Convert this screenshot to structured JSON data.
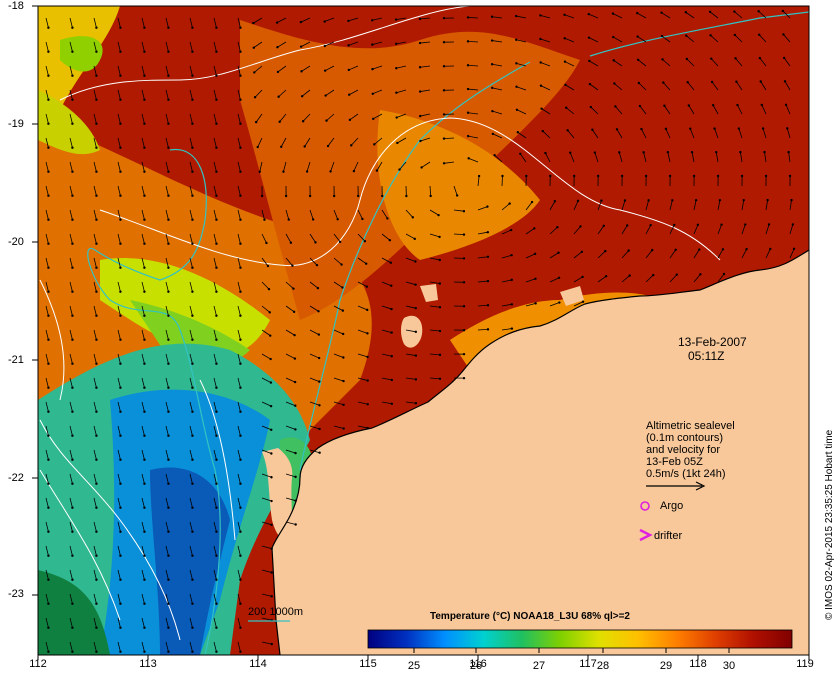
{
  "map": {
    "date": "13-Feb-2007",
    "time": "05:11Z",
    "lat_labels": [
      "-18",
      "-19",
      "-20",
      "-21",
      "-22",
      "-23"
    ],
    "lon_labels": [
      "112",
      "113",
      "114",
      "115",
      "116",
      "117",
      "118",
      "119"
    ],
    "land_color": "#f9c89a",
    "contour_color": "#33c3c3"
  },
  "legend": {
    "sealevel_lines": [
      "Altimetric sealevel",
      "(0.1m contours)",
      "and velocity for",
      "13-Feb 05Z",
      "0.5m/s (1kt 24h)"
    ],
    "argo": "Argo",
    "drifter": "drifter",
    "argo_color": "#e020e0",
    "drifter_color": "#e020e0"
  },
  "bathymetry": {
    "label": "200  1000m"
  },
  "colorbar": {
    "title": "Temperature (°C) NOAA18_L3U 68% ql>=2",
    "ticks": [
      "25",
      "26",
      "27",
      "28",
      "29",
      "30"
    ],
    "colors": [
      "#000080",
      "#0030c0",
      "#0090ff",
      "#00d0d0",
      "#20c060",
      "#80d000",
      "#e0e000",
      "#ffc000",
      "#ff8000",
      "#e04000",
      "#b01000",
      "#800000"
    ]
  },
  "credit": "© IMOS 02-Apr-2015 23:35:25 Hobart time"
}
